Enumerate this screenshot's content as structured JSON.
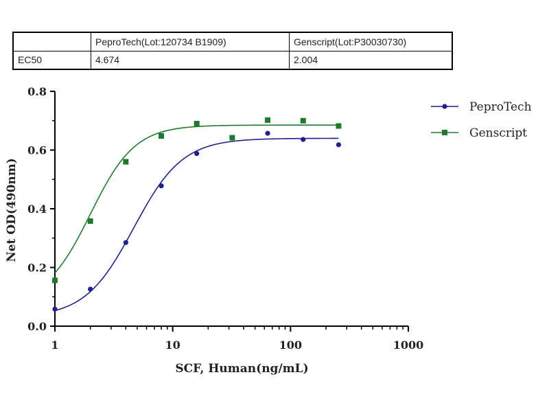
{
  "ec50_table": {
    "header": [
      "",
      "PeproTech(Lot:120734 B1909)",
      "Genscript(Lot:P30030730)"
    ],
    "row": [
      "EC50",
      "4.674",
      "2.004"
    ]
  },
  "chart_data": {
    "type": "scatter",
    "title": "",
    "xlabel": "SCF, Human(ng/mL)",
    "ylabel": "Net OD(490nm)",
    "x_scale": "log",
    "xlim": [
      1,
      1000
    ],
    "ylim": [
      0.0,
      0.8
    ],
    "x_ticks": [
      1,
      10,
      100,
      1000
    ],
    "x_tick_labels": [
      "1",
      "10",
      "100",
      "1000"
    ],
    "y_ticks": [
      0.0,
      0.2,
      0.4,
      0.6,
      0.8
    ],
    "y_tick_labels": [
      "0.0",
      "0.2",
      "0.4",
      "0.6",
      "0.8"
    ],
    "grid": false,
    "legend_position": "top-right",
    "series": [
      {
        "name": "PeproTech",
        "color": "#1f1f8f",
        "marker": "circle",
        "x": [
          1,
          2,
          4,
          8,
          16,
          32,
          64,
          128,
          256
        ],
        "y": [
          0.058,
          0.126,
          0.285,
          0.478,
          0.588,
          0.642,
          0.657,
          0.636,
          0.618
        ],
        "fit": {
          "bottom": 0.03,
          "top": 0.64,
          "ec50": 4.674,
          "hill": 2.1
        }
      },
      {
        "name": "Genscript",
        "color": "#1f7a2e",
        "marker": "square",
        "x": [
          1,
          2,
          4,
          8,
          16,
          32,
          64,
          128,
          256
        ],
        "y": [
          0.156,
          0.358,
          0.56,
          0.648,
          0.69,
          0.642,
          0.702,
          0.7,
          0.682
        ],
        "fit": {
          "bottom": 0.08,
          "top": 0.685,
          "ec50": 2.004,
          "hill": 2.3
        }
      }
    ]
  }
}
